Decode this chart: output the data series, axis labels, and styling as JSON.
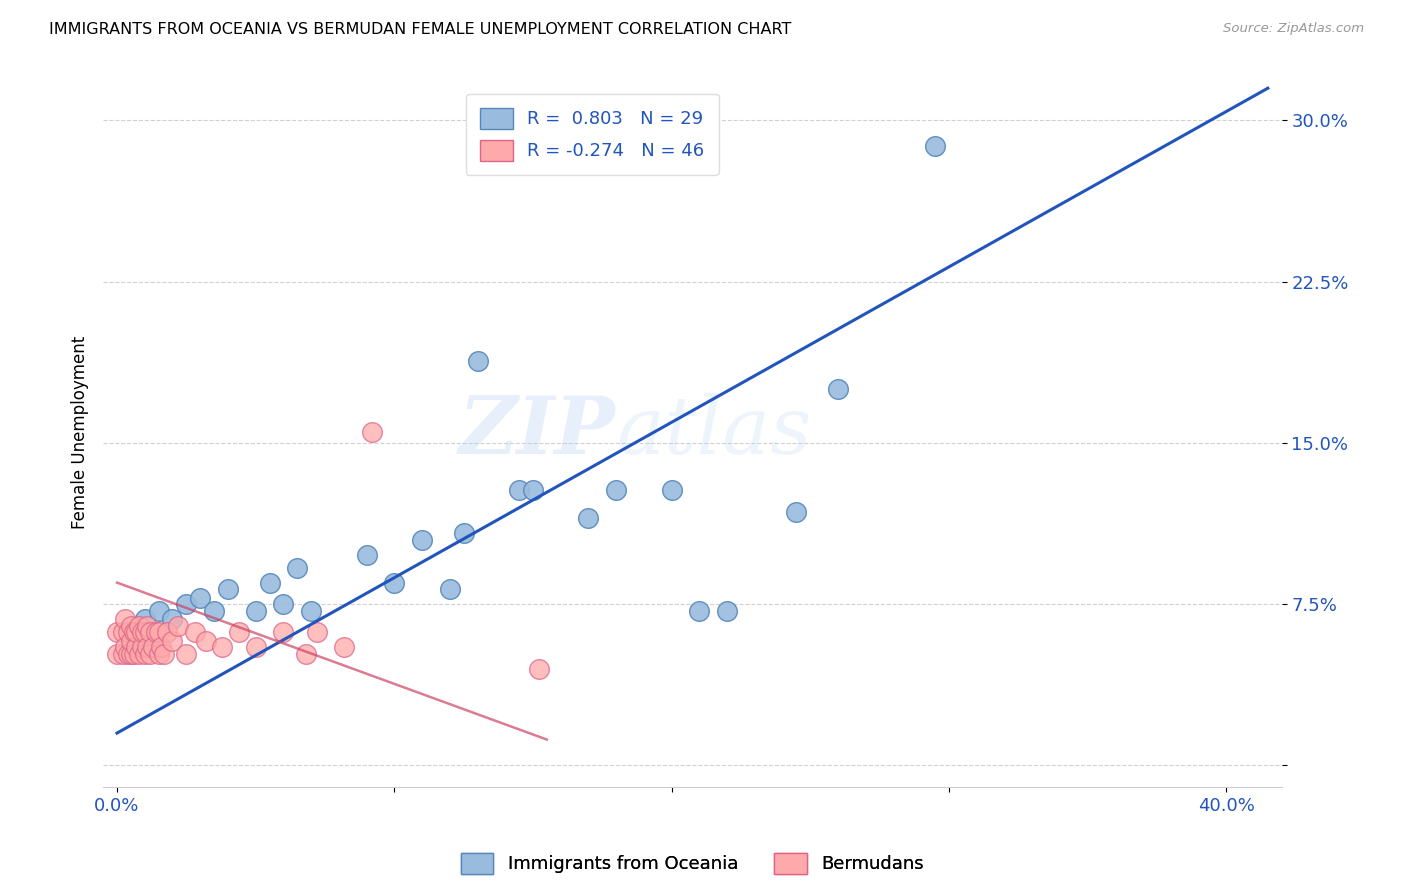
{
  "title": "IMMIGRANTS FROM OCEANIA VS BERMUDAN FEMALE UNEMPLOYMENT CORRELATION CHART",
  "source": "Source: ZipAtlas.com",
  "ylabel": "Female Unemployment",
  "ytick_labels": [
    "",
    "7.5%",
    "15.0%",
    "22.5%",
    "30.0%"
  ],
  "ytick_values": [
    0.0,
    0.075,
    0.15,
    0.225,
    0.3
  ],
  "xtick_values": [
    0.0,
    0.1,
    0.2,
    0.3,
    0.4
  ],
  "xtick_labels": [
    "0.0%",
    "",
    "",
    "",
    "40.0%"
  ],
  "xlim": [
    -0.005,
    0.42
  ],
  "ylim": [
    -0.01,
    0.32
  ],
  "watermark_zip": "ZIP",
  "watermark_atlas": "atlas",
  "legend_blue_label": "R =  0.803   N = 29",
  "legend_pink_label": "R = -0.274   N = 46",
  "blue_scatter_color": "#99BBDD",
  "blue_scatter_edge": "#5588BB",
  "pink_scatter_color": "#FFAAAA",
  "pink_scatter_edge": "#DD6688",
  "blue_line_color": "#2255BB",
  "pink_line_color": "#CC4466",
  "legend_bottom_blue": "Immigrants from Oceania",
  "legend_bottom_pink": "Bermudans",
  "blue_points_x": [
    0.005,
    0.01,
    0.015,
    0.02,
    0.025,
    0.03,
    0.035,
    0.04,
    0.05,
    0.055,
    0.06,
    0.065,
    0.07,
    0.09,
    0.1,
    0.11,
    0.12,
    0.125,
    0.13,
    0.145,
    0.15,
    0.17,
    0.18,
    0.2,
    0.21,
    0.22,
    0.245,
    0.26,
    0.295
  ],
  "blue_points_y": [
    0.055,
    0.068,
    0.072,
    0.068,
    0.075,
    0.078,
    0.072,
    0.082,
    0.072,
    0.085,
    0.075,
    0.092,
    0.072,
    0.098,
    0.085,
    0.105,
    0.082,
    0.108,
    0.188,
    0.128,
    0.128,
    0.115,
    0.128,
    0.128,
    0.072,
    0.072,
    0.118,
    0.175,
    0.288
  ],
  "pink_points_x": [
    0.0,
    0.0,
    0.002,
    0.002,
    0.003,
    0.003,
    0.004,
    0.004,
    0.005,
    0.005,
    0.005,
    0.006,
    0.006,
    0.007,
    0.007,
    0.008,
    0.008,
    0.009,
    0.009,
    0.01,
    0.01,
    0.011,
    0.011,
    0.012,
    0.012,
    0.013,
    0.014,
    0.015,
    0.015,
    0.016,
    0.017,
    0.018,
    0.02,
    0.022,
    0.025,
    0.028,
    0.032,
    0.038,
    0.044,
    0.05,
    0.06,
    0.068,
    0.072,
    0.082,
    0.092,
    0.152
  ],
  "pink_points_y": [
    0.052,
    0.062,
    0.052,
    0.062,
    0.055,
    0.068,
    0.052,
    0.062,
    0.052,
    0.058,
    0.065,
    0.052,
    0.062,
    0.055,
    0.062,
    0.052,
    0.065,
    0.055,
    0.062,
    0.052,
    0.062,
    0.055,
    0.065,
    0.052,
    0.062,
    0.055,
    0.062,
    0.052,
    0.062,
    0.055,
    0.052,
    0.062,
    0.058,
    0.065,
    0.052,
    0.062,
    0.058,
    0.055,
    0.062,
    0.055,
    0.062,
    0.052,
    0.062,
    0.055,
    0.155,
    0.045
  ],
  "blue_trend_x": [
    0.0,
    0.415
  ],
  "blue_trend_y": [
    0.015,
    0.315
  ],
  "pink_trend_x": [
    0.0,
    0.155
  ],
  "pink_trend_y": [
    0.085,
    0.012
  ]
}
